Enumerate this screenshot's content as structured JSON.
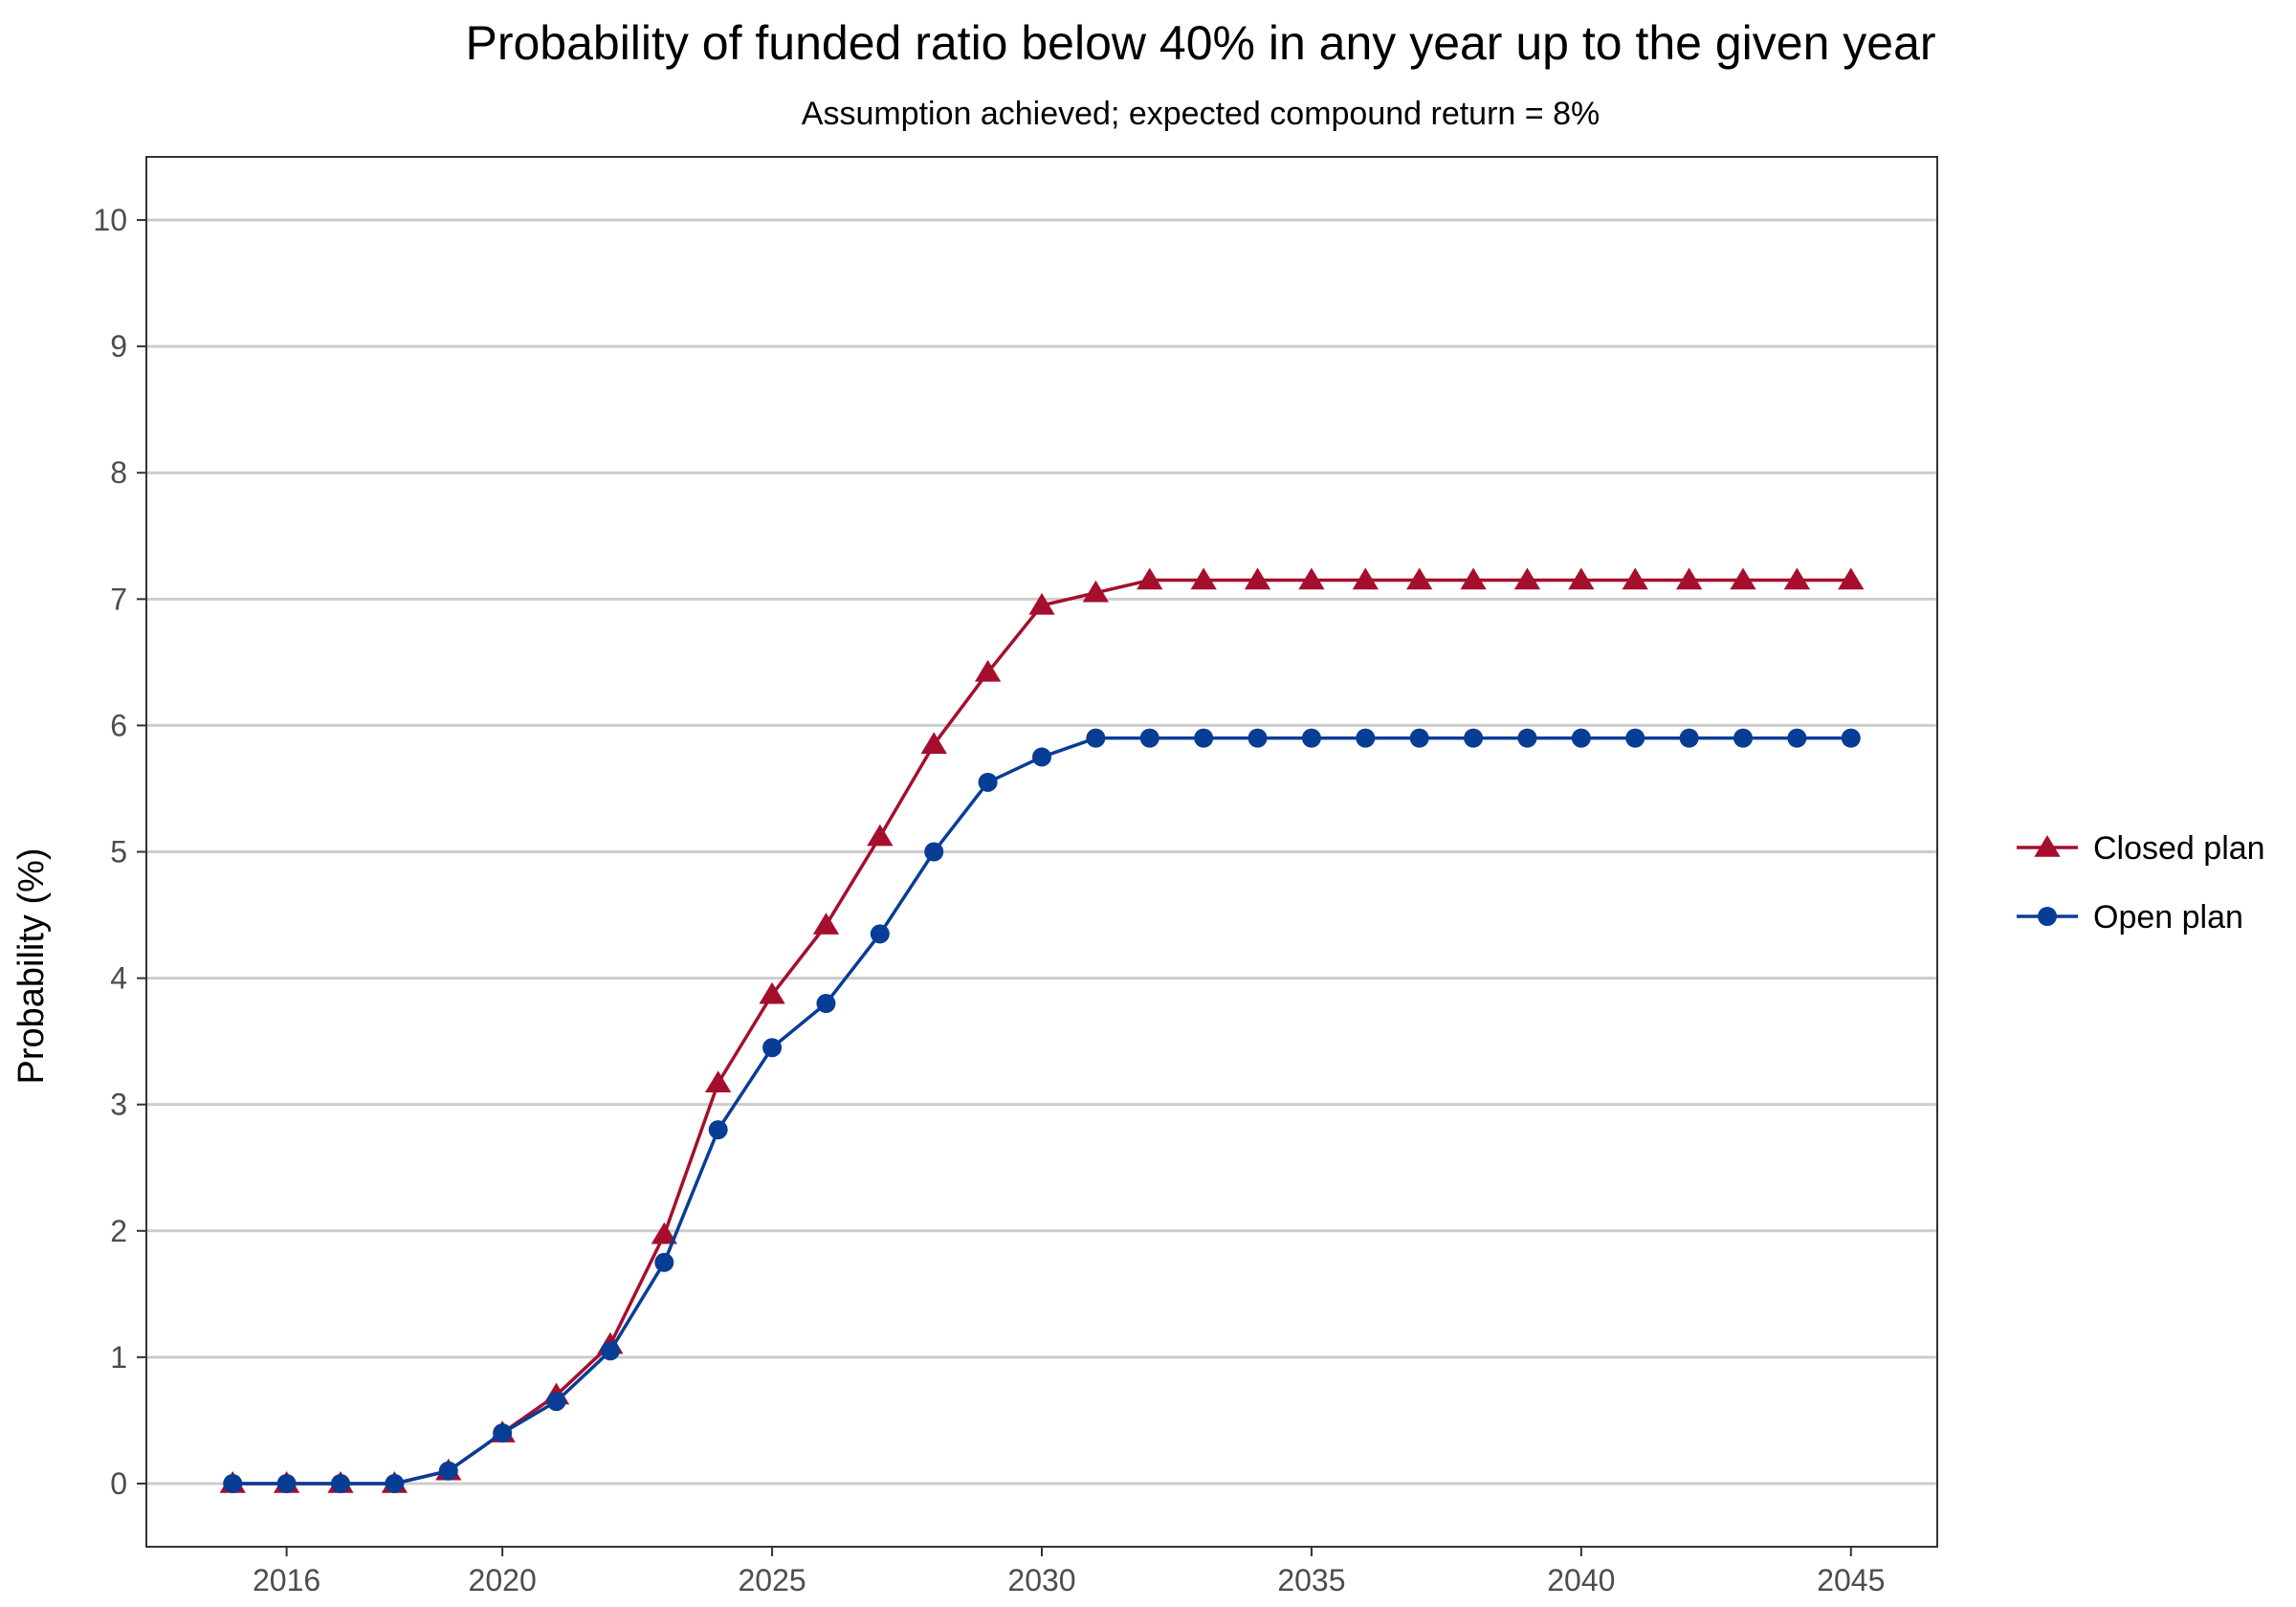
{
  "chart_data": {
    "type": "line",
    "title": "Probability of funded ratio below 40% in any year up to the given year",
    "subtitle": "Assumption achieved; expected compound return = 8%",
    "xlabel": "",
    "ylabel": "Probability (%)",
    "x": [
      2015,
      2016,
      2017,
      2018,
      2019,
      2020,
      2021,
      2022,
      2023,
      2024,
      2025,
      2026,
      2027,
      2028,
      2029,
      2030,
      2031,
      2032,
      2033,
      2034,
      2035,
      2036,
      2037,
      2038,
      2039,
      2040,
      2041,
      2042,
      2043,
      2044,
      2045
    ],
    "xlim": [
      2013.4,
      2046.6
    ],
    "ylim": [
      -0.5,
      10.5
    ],
    "xticks": [
      2016,
      2020,
      2025,
      2030,
      2035,
      2040,
      2045
    ],
    "yticks": [
      0,
      1,
      2,
      3,
      4,
      5,
      6,
      7,
      8,
      9,
      10
    ],
    "grid": "horizontal major",
    "legend_position": "right",
    "series": [
      {
        "name": "Closed plan",
        "color": "#a50f2d",
        "marker": "triangle",
        "values": [
          0,
          0,
          0,
          0,
          0.1,
          0.4,
          0.7,
          1.1,
          1.97,
          3.17,
          3.87,
          4.42,
          5.12,
          5.85,
          6.42,
          6.95,
          7.05,
          7.15,
          7.15,
          7.15,
          7.15,
          7.15,
          7.15,
          7.15,
          7.15,
          7.15,
          7.15,
          7.15,
          7.15,
          7.15,
          7.15
        ]
      },
      {
        "name": "Open plan",
        "color": "#083d96",
        "marker": "circle",
        "values": [
          0,
          0,
          0,
          0,
          0.1,
          0.4,
          0.65,
          1.05,
          1.75,
          2.8,
          3.45,
          3.8,
          4.35,
          5.0,
          5.55,
          5.75,
          5.9,
          5.9,
          5.9,
          5.9,
          5.9,
          5.9,
          5.9,
          5.9,
          5.9,
          5.9,
          5.9,
          5.9,
          5.9,
          5.9,
          5.9
        ]
      }
    ]
  }
}
